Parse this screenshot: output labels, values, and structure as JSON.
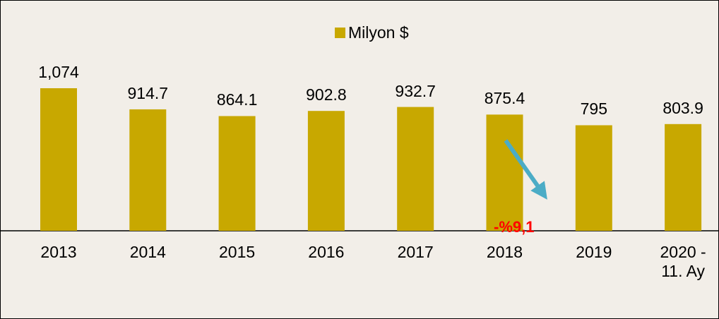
{
  "chart_data": {
    "type": "bar",
    "legend": "Milyon $",
    "categories": [
      "2013",
      "2014",
      "2015",
      "2016",
      "2017",
      "2018",
      "2019",
      "2020 - 11. Ay"
    ],
    "values": [
      1074,
      914.7,
      864.1,
      902.8,
      932.7,
      875.4,
      795,
      803.9
    ],
    "value_labels": [
      "1,074",
      "914.7",
      "864.1",
      "902.8",
      "932.7",
      "875.4",
      "795",
      "803.9"
    ],
    "color": "#c8a800",
    "ylim": [
      0,
      1200
    ],
    "annotation": "-%9,1"
  }
}
